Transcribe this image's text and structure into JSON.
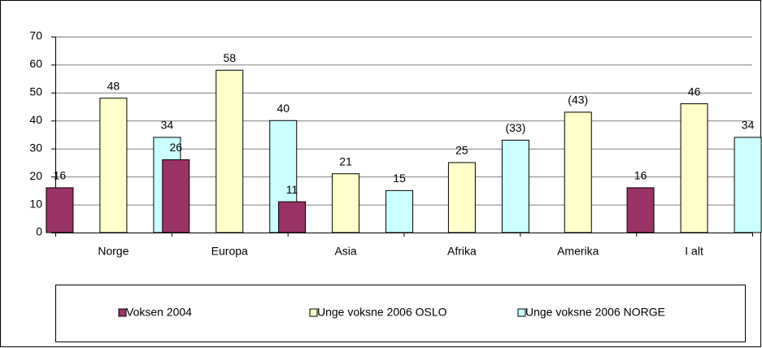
{
  "chart_data": {
    "type": "bar",
    "categories": [
      "Norge",
      "Europa",
      "Asia",
      "Afrika",
      "Amerika",
      "I alt"
    ],
    "series": [
      {
        "name": "Voksen 2004",
        "color": "#993366",
        "values": [
          16,
          26,
          11,
          null,
          null,
          16
        ]
      },
      {
        "name": "Unge voksne 2006 OSLO",
        "color": "#ffffcc",
        "values": [
          48,
          58,
          21,
          25,
          43,
          46
        ],
        "value_labels": [
          "48",
          "58",
          "21",
          "25",
          "(43)",
          "46"
        ]
      },
      {
        "name": "Unge voksne 2006 NORGE",
        "color": "#ccffff",
        "values": [
          34,
          40,
          15,
          33,
          null,
          34
        ],
        "value_labels": [
          "34",
          "40",
          "15",
          "(33)",
          null,
          "34"
        ]
      }
    ],
    "ylim": [
      0,
      70
    ],
    "yticks": [
      0,
      10,
      20,
      30,
      40,
      50,
      60,
      70
    ],
    "grid": true,
    "legend": "bottom"
  }
}
